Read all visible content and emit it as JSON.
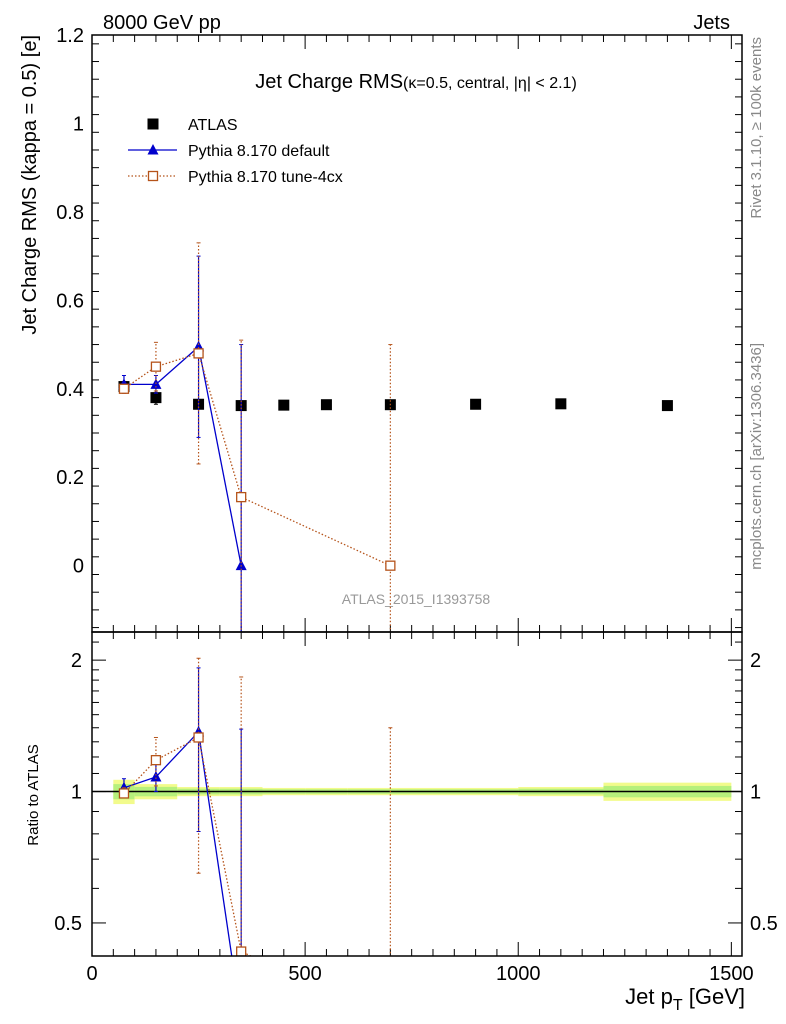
{
  "header": {
    "left": "8000 GeV pp",
    "right": "Jets"
  },
  "side": {
    "top": "Rivet 3.1.10, ≥ 100k events",
    "bottom": "mcplots.cern.ch [arXiv:1306.3436]"
  },
  "chart_data": [
    {
      "type": "scatter",
      "panel": "main",
      "title_main": "Jet Charge RMS",
      "title_sub": "(κ=0.5, central, |η| < 2.1)",
      "watermark": "ATLAS_2015_I1393758",
      "ylabel": "Jet Charge RMS (kappa = 0.5) [e]",
      "xlim": [
        0,
        1525
      ],
      "ylim": [
        -0.15,
        1.2
      ],
      "yticks": [
        0,
        0.2,
        0.4,
        0.6,
        0.8,
        1,
        1.2
      ],
      "ytick_labels": [
        "0",
        "0.2",
        "0.4",
        "0.6",
        "0.8",
        "1",
        "1.2"
      ],
      "legend_position": "top-left",
      "series": [
        {
          "name": "ATLAS",
          "color": "#000000",
          "marker": "square",
          "x": [
            75,
            150,
            250,
            350,
            450,
            550,
            700,
            900,
            1100,
            1350
          ],
          "y": [
            0.405,
            0.38,
            0.365,
            0.362,
            0.363,
            0.364,
            0.364,
            0.365,
            0.366,
            0.362
          ],
          "err": [
            0.01,
            0.015,
            0.005,
            0.005,
            0.004,
            0.004,
            0.004,
            0.004,
            0.004,
            0.004
          ]
        },
        {
          "name": "Pythia 8.170 default",
          "color": "#0000cc",
          "marker": "triangle",
          "line": "solid",
          "x": [
            75,
            150,
            250,
            350
          ],
          "y": [
            0.41,
            0.41,
            0.495,
            0.0
          ],
          "err": [
            0.02,
            0.02,
            0.205,
            0.5
          ]
        },
        {
          "name": "Pythia 8.170 tune-4cx",
          "color": "#b5531a",
          "marker": "open-square",
          "line": "dotted",
          "x": [
            75,
            150,
            250,
            350,
            700
          ],
          "y": [
            0.4,
            0.45,
            0.48,
            0.155,
            0.0
          ],
          "err": [
            0.01,
            0.055,
            0.25,
            0.355,
            0.5
          ]
        }
      ]
    },
    {
      "type": "scatter",
      "panel": "ratio",
      "ylabel": "Ratio to ATLAS",
      "xlabel": "Jet p_T [GeV]",
      "xlim": [
        0,
        1525
      ],
      "ylim": [
        0.42,
        2.32
      ],
      "log_y": true,
      "xticks": [
        0,
        500,
        1000,
        1500
      ],
      "xtick_labels": [
        "0",
        "500",
        "1000",
        "1500"
      ],
      "yticks": [
        0.5,
        1,
        2
      ],
      "ytick_labels": [
        "0.5",
        "1",
        "2"
      ],
      "band": {
        "x": [
          [
            50,
            100
          ],
          [
            100,
            200
          ],
          [
            200,
            300
          ],
          [
            300,
            400
          ],
          [
            400,
            500
          ],
          [
            500,
            600
          ],
          [
            600,
            800
          ],
          [
            800,
            1000
          ],
          [
            1000,
            1200
          ],
          [
            1200,
            1500
          ]
        ],
        "half_width": [
          0.04,
          0.025,
          0.015,
          0.015,
          0.012,
          0.012,
          0.012,
          0.012,
          0.015,
          0.03
        ]
      },
      "series": [
        {
          "name": "Pythia 8.170 default",
          "color": "#0000cc",
          "marker": "triangle",
          "line": "solid",
          "x": [
            75,
            150,
            250,
            350
          ],
          "y": [
            1.02,
            1.08,
            1.37,
            0.0
          ],
          "err_low": [
            0.04,
            0.08,
            0.56,
            1.0
          ],
          "err_high": [
            0.05,
            0.08,
            0.55,
            1.39
          ]
        },
        {
          "name": "Pythia 8.170 tune-4cx",
          "color": "#b5531a",
          "marker": "open-square",
          "line": "dotted",
          "x": [
            75,
            150,
            250,
            350,
            700
          ],
          "y": [
            0.99,
            1.18,
            1.33,
            0.43,
            0.0
          ],
          "err_low": [
            0.02,
            0.15,
            0.68,
            1.0,
            1.0
          ],
          "err_high": [
            0.03,
            0.15,
            0.69,
            1.4,
            1.4
          ]
        }
      ]
    }
  ]
}
